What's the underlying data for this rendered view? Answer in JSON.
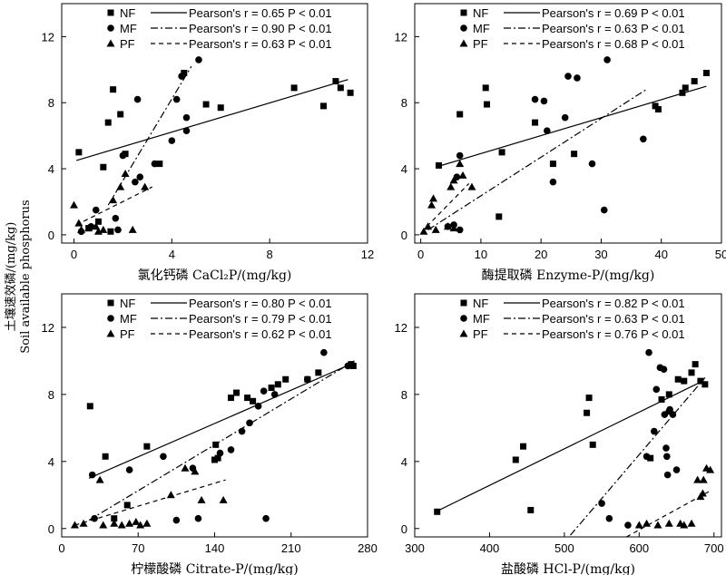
{
  "ylabel_cn": "土壤速效磷/(mg/kg)",
  "ylabel_en": "Soil available phosphorus",
  "legend_groups": [
    "NF",
    "MF",
    "PF"
  ],
  "chart_data": [
    {
      "type": "scatter",
      "xlabel": "氯化钙磷 CaCl₂P/(mg/kg)",
      "xlim": [
        -0.5,
        12
      ],
      "ylim": [
        -0.5,
        14
      ],
      "xticks": [
        0,
        4,
        8,
        12
      ],
      "yticks": [
        0,
        4,
        8,
        12
      ],
      "series": [
        {
          "name": "NF",
          "marker": "square",
          "line": "solid",
          "stats": "Pearson's r = 0.65   P < 0.01",
          "fit": [
            [
              0.1,
              4.5
            ],
            [
              11.2,
              9.4
            ]
          ],
          "points": [
            [
              0.2,
              5.0
            ],
            [
              1.2,
              4.1
            ],
            [
              1.4,
              6.8
            ],
            [
              1.6,
              8.8
            ],
            [
              1.9,
              7.3
            ],
            [
              2.1,
              4.9
            ],
            [
              3.5,
              4.3
            ],
            [
              4.5,
              9.8
            ],
            [
              5.4,
              7.9
            ],
            [
              6.0,
              7.7
            ],
            [
              9.0,
              8.9
            ],
            [
              10.2,
              7.8
            ],
            [
              10.7,
              9.3
            ],
            [
              10.9,
              8.9
            ],
            [
              11.3,
              8.6
            ],
            [
              0.6,
              0.4
            ],
            [
              1.0,
              0.8
            ],
            [
              1.5,
              0.2
            ]
          ]
        },
        {
          "name": "MF",
          "marker": "circle",
          "line": "dashdot",
          "stats": "Pearson's r = 0.90   P < 0.01",
          "fit": [
            [
              1.4,
              1.8
            ],
            [
              4.8,
              10.2
            ]
          ],
          "points": [
            [
              0.9,
              1.5
            ],
            [
              1.7,
              1.0
            ],
            [
              2.0,
              4.8
            ],
            [
              2.5,
              3.2
            ],
            [
              2.7,
              3.5
            ],
            [
              2.6,
              8.2
            ],
            [
              3.3,
              4.3
            ],
            [
              4.0,
              5.7
            ],
            [
              4.2,
              8.2
            ],
            [
              4.4,
              9.6
            ],
            [
              4.6,
              7.1
            ],
            [
              4.6,
              6.3
            ],
            [
              5.1,
              10.6
            ],
            [
              1.8,
              0.3
            ],
            [
              0.7,
              0.5
            ],
            [
              0.3,
              0.2
            ]
          ]
        },
        {
          "name": "PF",
          "marker": "triangle",
          "line": "dashed",
          "stats": "Pearson's r = 0.63   P < 0.01",
          "fit": [
            [
              0.1,
              0.6
            ],
            [
              3.2,
              2.9
            ]
          ],
          "points": [
            [
              0.0,
              1.8
            ],
            [
              0.2,
              0.7
            ],
            [
              0.3,
              0.3
            ],
            [
              0.6,
              0.4
            ],
            [
              0.9,
              0.5
            ],
            [
              1.0,
              0.2
            ],
            [
              1.2,
              0.3
            ],
            [
              1.6,
              2.1
            ],
            [
              1.9,
              2.9
            ],
            [
              2.1,
              3.7
            ],
            [
              2.4,
              0.3
            ],
            [
              2.9,
              2.9
            ]
          ]
        }
      ]
    },
    {
      "type": "scatter",
      "xlabel": "酶提取磷 Enzyme-P/(mg/kg)",
      "xlim": [
        -1,
        50
      ],
      "ylim": [
        -0.5,
        14
      ],
      "xticks": [
        0,
        10,
        20,
        30,
        40,
        50
      ],
      "yticks": [
        0,
        4,
        8,
        12
      ],
      "series": [
        {
          "name": "NF",
          "marker": "square",
          "line": "solid",
          "stats": "Pearson's r = 0.69   P < 0.01",
          "fit": [
            [
              2.5,
              4.1
            ],
            [
              47.5,
              9.0
            ]
          ],
          "points": [
            [
              3.0,
              4.2
            ],
            [
              6.5,
              7.3
            ],
            [
              10.8,
              8.9
            ],
            [
              11.0,
              7.9
            ],
            [
              13.5,
              5.0
            ],
            [
              13.0,
              1.1
            ],
            [
              19.0,
              6.8
            ],
            [
              22.0,
              4.3
            ],
            [
              25.5,
              4.9
            ],
            [
              39.0,
              7.8
            ],
            [
              39.5,
              7.6
            ],
            [
              43.5,
              8.6
            ],
            [
              44.0,
              8.9
            ],
            [
              45.5,
              9.3
            ],
            [
              47.5,
              9.8
            ]
          ]
        },
        {
          "name": "MF",
          "marker": "circle",
          "line": "dashdot",
          "stats": "Pearson's r = 0.63   P < 0.01",
          "fit": [
            [
              1.2,
              0.3
            ],
            [
              37.5,
              8.8
            ]
          ],
          "points": [
            [
              4.5,
              0.5
            ],
            [
              5.5,
              0.6
            ],
            [
              6.0,
              3.5
            ],
            [
              6.5,
              4.8
            ],
            [
              19.0,
              8.2
            ],
            [
              20.5,
              8.1
            ],
            [
              21.0,
              6.3
            ],
            [
              22.0,
              3.2
            ],
            [
              24.0,
              7.1
            ],
            [
              24.5,
              9.6
            ],
            [
              26.0,
              9.5
            ],
            [
              28.5,
              4.3
            ],
            [
              30.5,
              1.5
            ],
            [
              31.0,
              10.6
            ],
            [
              37.0,
              5.8
            ],
            [
              6.5,
              0.3
            ]
          ]
        },
        {
          "name": "PF",
          "marker": "triangle",
          "line": "dashed",
          "stats": "Pearson's r = 0.68   P < 0.01",
          "fit": [
            [
              1.0,
              0.5
            ],
            [
              8.0,
              3.1
            ]
          ],
          "points": [
            [
              0.5,
              0.2
            ],
            [
              1.2,
              0.5
            ],
            [
              1.8,
              1.8
            ],
            [
              2.1,
              2.2
            ],
            [
              2.5,
              0.3
            ],
            [
              5.0,
              2.9
            ],
            [
              5.5,
              3.3
            ],
            [
              6.5,
              4.3
            ],
            [
              7.0,
              3.6
            ],
            [
              8.5,
              2.9
            ],
            [
              4.5,
              0.5
            ],
            [
              5.5,
              0.4
            ]
          ]
        }
      ]
    },
    {
      "type": "scatter",
      "xlabel": "柠檬酸磷 Citrate-P/(mg/kg)",
      "xlim": [
        0,
        280
      ],
      "ylim": [
        -0.5,
        14
      ],
      "xticks": [
        0,
        70,
        140,
        210,
        280
      ],
      "yticks": [
        0,
        4,
        8,
        12
      ],
      "series": [
        {
          "name": "NF",
          "marker": "square",
          "line": "solid",
          "stats": "Pearson's r = 0.80   P < 0.01",
          "fit": [
            [
              25,
              3.0
            ],
            [
              268,
              9.9
            ]
          ],
          "points": [
            [
              26,
              7.3
            ],
            [
              40,
              4.3
            ],
            [
              48,
              0.6
            ],
            [
              60,
              1.4
            ],
            [
              78,
              4.9
            ],
            [
              140,
              4.1
            ],
            [
              141,
              5.0
            ],
            [
              143,
              4.2
            ],
            [
              155,
              7.8
            ],
            [
              160,
              8.1
            ],
            [
              170,
              7.8
            ],
            [
              175,
              7.6
            ],
            [
              192,
              8.4
            ],
            [
              198,
              8.6
            ],
            [
              205,
              8.9
            ],
            [
              225,
              8.9
            ],
            [
              235,
              9.3
            ],
            [
              265,
              9.8
            ],
            [
              267,
              9.7
            ]
          ]
        },
        {
          "name": "MF",
          "marker": "circle",
          "line": "dashdot",
          "stats": "Pearson's r = 0.79   P < 0.01",
          "fit": [
            [
              25,
              0.5
            ],
            [
              268,
              10.0
            ]
          ],
          "points": [
            [
              28,
              3.2
            ],
            [
              30,
              0.6
            ],
            [
              62,
              3.5
            ],
            [
              93,
              4.3
            ],
            [
              105,
              0.5
            ],
            [
              120,
              3.6
            ],
            [
              125,
              0.6
            ],
            [
              145,
              4.5
            ],
            [
              155,
              4.7
            ],
            [
              165,
              5.8
            ],
            [
              172,
              6.3
            ],
            [
              180,
              7.3
            ],
            [
              185,
              8.2
            ],
            [
              195,
              8.0
            ],
            [
              187,
              0.6
            ],
            [
              225,
              8.9
            ],
            [
              240,
              10.5
            ],
            [
              262,
              9.7
            ]
          ]
        },
        {
          "name": "PF",
          "marker": "triangle",
          "line": "dashed",
          "stats": "Pearson's r = 0.62   P < 0.01",
          "fit": [
            [
              12,
              0.2
            ],
            [
              150,
              2.9
            ]
          ],
          "points": [
            [
              12,
              0.2
            ],
            [
              20,
              0.3
            ],
            [
              35,
              2.9
            ],
            [
              38,
              0.2
            ],
            [
              48,
              0.3
            ],
            [
              55,
              0.2
            ],
            [
              62,
              0.3
            ],
            [
              68,
              0.4
            ],
            [
              72,
              0.2
            ],
            [
              78,
              0.3
            ],
            [
              100,
              2.0
            ],
            [
              113,
              3.6
            ],
            [
              122,
              3.4
            ],
            [
              128,
              1.7
            ],
            [
              148,
              1.7
            ]
          ]
        }
      ]
    },
    {
      "type": "scatter",
      "xlabel": "盐酸磷 HCl-P/(mg/kg)",
      "xlim": [
        300,
        710
      ],
      "ylim": [
        -0.5,
        14
      ],
      "xticks": [
        300,
        400,
        500,
        600,
        700
      ],
      "yticks": [
        0,
        4,
        8,
        12
      ],
      "series": [
        {
          "name": "NF",
          "marker": "square",
          "line": "solid",
          "stats": "Pearson's r = 0.82   P < 0.01",
          "fit": [
            [
              328,
              1.0
            ],
            [
              685,
              8.8
            ]
          ],
          "points": [
            [
              330,
              1.0
            ],
            [
              435,
              4.1
            ],
            [
              445,
              4.9
            ],
            [
              455,
              1.1
            ],
            [
              530,
              6.9
            ],
            [
              533,
              7.8
            ],
            [
              538,
              5.0
            ],
            [
              615,
              4.2
            ],
            [
              630,
              7.7
            ],
            [
              640,
              8.0
            ],
            [
              652,
              8.9
            ],
            [
              660,
              8.8
            ],
            [
              670,
              9.3
            ],
            [
              675,
              9.8
            ],
            [
              682,
              8.8
            ],
            [
              688,
              8.6
            ]
          ]
        },
        {
          "name": "MF",
          "marker": "circle",
          "line": "dashdot",
          "stats": "Pearson's r = 0.63   P < 0.01",
          "fit": [
            [
              508,
              -0.4
            ],
            [
              688,
              9.0
            ]
          ],
          "points": [
            [
              550,
              1.5
            ],
            [
              560,
              0.6
            ],
            [
              585,
              0.2
            ],
            [
              610,
              4.3
            ],
            [
              613,
              10.5
            ],
            [
              620,
              5.8
            ],
            [
              623,
              8.3
            ],
            [
              628,
              9.6
            ],
            [
              633,
              9.5
            ],
            [
              634,
              6.8
            ],
            [
              636,
              4.8
            ],
            [
              637,
              4.3
            ],
            [
              638,
              3.2
            ],
            [
              640,
              7.0
            ],
            [
              641,
              7.1
            ],
            [
              645,
              6.8
            ],
            [
              650,
              3.5
            ]
          ]
        },
        {
          "name": "PF",
          "marker": "triangle",
          "line": "dashed",
          "stats": "Pearson's r = 0.76   P < 0.01",
          "fit": [
            [
              583,
              -0.5
            ],
            [
              693,
              2.2
            ]
          ],
          "points": [
            [
              600,
              0.2
            ],
            [
              610,
              0.3
            ],
            [
              625,
              0.2
            ],
            [
              640,
              0.3
            ],
            [
              655,
              0.3
            ],
            [
              660,
              0.2
            ],
            [
              670,
              0.3
            ],
            [
              678,
              2.9
            ],
            [
              682,
              1.9
            ],
            [
              686,
              2.9
            ],
            [
              690,
              3.6
            ],
            [
              695,
              3.5
            ],
            [
              685,
              2.1
            ]
          ]
        }
      ]
    }
  ]
}
